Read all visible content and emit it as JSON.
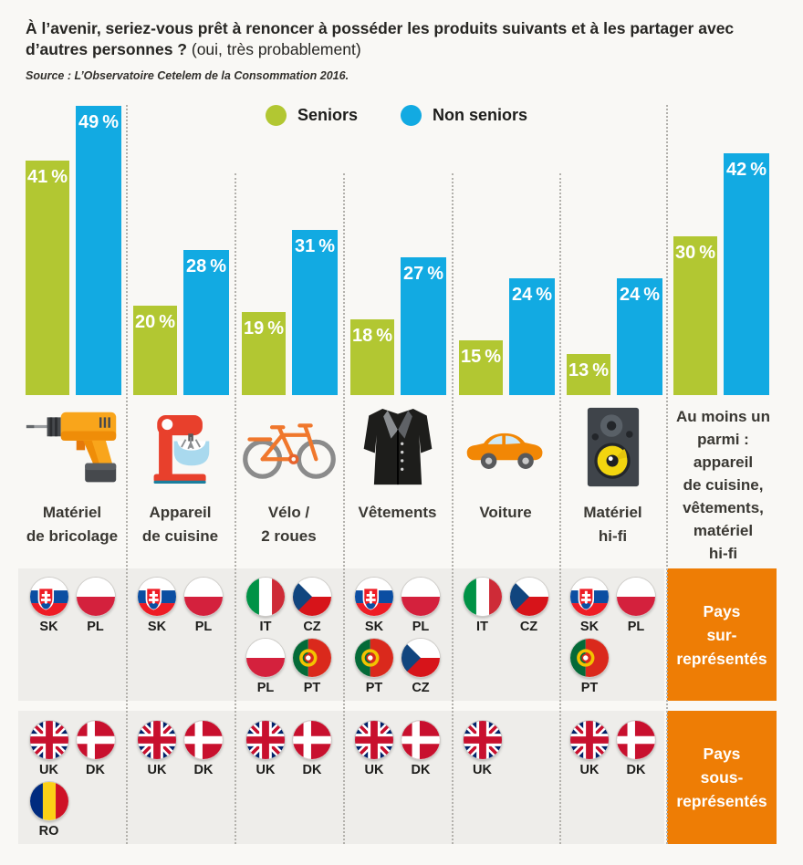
{
  "header": {
    "title_bold": "À l’avenir, seriez-vous prêt à renoncer à posséder les produits suivants et à les partager avec d’autres personnes ?",
    "title_note": "(oui, très probablement)",
    "source": "Source : L’Observatoire Cetelem de la Consommation 2016."
  },
  "legend": {
    "seniors": "Seniors",
    "non_seniors": "Non seniors"
  },
  "colors": {
    "seniors_green": "#b2c732",
    "non_seniors_blue": "#12aae2",
    "accent_orange": "#ee7d05",
    "band_gray": "#eeedea",
    "background": "#f9f8f5"
  },
  "chart_data": {
    "type": "bar",
    "title": "À l’avenir, seriez-vous prêt à renoncer à posséder les produits suivants et à les partager avec d’autres personnes ? (oui, très probablement)",
    "unit": "%",
    "legend_position": "top-center",
    "categories": [
      "Matériel de bricolage",
      "Appareil de cuisine",
      "Vélo / 2 roues",
      "Vêtements",
      "Voiture",
      "Matériel hi-fi",
      "Au moins un parmi : appareil de cuisine, vêtements, matériel hi-fi"
    ],
    "series": [
      {
        "name": "Seniors",
        "values": [
          41,
          20,
          19,
          18,
          15,
          13,
          30
        ]
      },
      {
        "name": "Non seniors",
        "values": [
          49,
          28,
          31,
          27,
          24,
          24,
          42
        ]
      }
    ]
  },
  "columns": [
    {
      "label_lines": [
        "Matériel",
        "de bricolage"
      ],
      "icon": "drill-icon",
      "over_flags": [
        "SK",
        "PL"
      ],
      "under_flags": [
        "UK",
        "DK",
        "RO"
      ]
    },
    {
      "label_lines": [
        "Appareil",
        "de cuisine"
      ],
      "icon": "mixer-icon",
      "over_flags": [
        "SK",
        "PL"
      ],
      "under_flags": [
        "UK",
        "DK"
      ]
    },
    {
      "label_lines": [
        "Vélo /",
        "2 roues"
      ],
      "icon": "bicycle-icon",
      "over_flags": [
        "IT",
        "CZ",
        "PL",
        "PT"
      ],
      "under_flags": [
        "UK",
        "DK"
      ]
    },
    {
      "label_lines": [
        "Vêtements"
      ],
      "icon": "coat-icon",
      "over_flags": [
        "SK",
        "PL",
        "PT",
        "CZ"
      ],
      "under_flags": [
        "UK",
        "DK"
      ]
    },
    {
      "label_lines": [
        "Voiture"
      ],
      "icon": "car-icon",
      "over_flags": [
        "IT",
        "CZ"
      ],
      "under_flags": [
        "UK"
      ]
    },
    {
      "label_lines": [
        "Matériel",
        "hi-fi"
      ],
      "icon": "speaker-icon",
      "over_flags": [
        "SK",
        "PL",
        "PT"
      ],
      "under_flags": [
        "UK",
        "DK"
      ]
    },
    {
      "label_lines": [
        "Au moins un",
        "parmi :",
        "appareil",
        "de cuisine,",
        "vêtements,",
        "matériel",
        "hi-fi"
      ],
      "icon": null,
      "over_flags": [],
      "under_flags": []
    }
  ],
  "over_box": {
    "lines": [
      "Pays",
      "sur-",
      "représentés"
    ]
  },
  "under_box": {
    "lines": [
      "Pays",
      "sous-",
      "représentés"
    ]
  }
}
